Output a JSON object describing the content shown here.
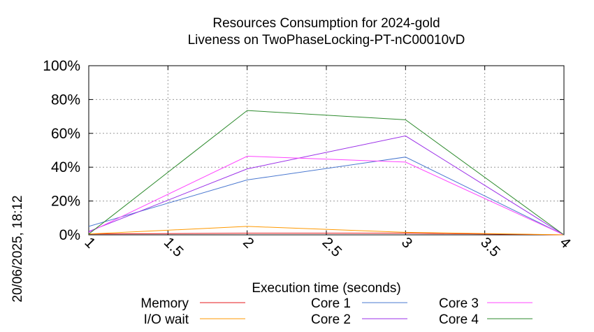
{
  "chart_data": {
    "type": "line",
    "title": "Resources Consumption for 2024-gold",
    "subtitle": "Liveness on TwoPhaseLocking-PT-nC00010vD",
    "xlabel": "Execution time (seconds)",
    "ylabel": "",
    "side_label": "20/06/2025, 18:12",
    "xlim": [
      1,
      4
    ],
    "ylim": [
      0,
      100
    ],
    "x_ticks": [
      1,
      1.5,
      2,
      2.5,
      3,
      3.5,
      4
    ],
    "x_tick_labels": [
      "1",
      "1.5",
      "2",
      "2.5",
      "3",
      "3.5",
      "4"
    ],
    "y_ticks": [
      0,
      20,
      40,
      60,
      80,
      100
    ],
    "y_tick_labels": [
      "0%",
      "20%",
      "40%",
      "60%",
      "80%",
      "100%"
    ],
    "grid": true,
    "legend_placement": "bottom",
    "x": [
      1,
      2,
      3,
      4
    ],
    "series": [
      {
        "name": "Memory",
        "color": "#e41a1c",
        "values": [
          0.5,
          1.0,
          1.0,
          0.0
        ]
      },
      {
        "name": "I/O wait",
        "color": "#ff9900",
        "values": [
          0.5,
          5.0,
          1.5,
          0.0
        ]
      },
      {
        "name": "Core 1",
        "color": "#4a78d0",
        "values": [
          5.0,
          32.5,
          46.0,
          0.0
        ]
      },
      {
        "name": "Core 2",
        "color": "#9b30e8",
        "values": [
          2.0,
          39.0,
          58.5,
          0.0
        ]
      },
      {
        "name": "Core 3",
        "color": "#ff44ff",
        "values": [
          1.5,
          46.5,
          43.0,
          0.0
        ]
      },
      {
        "name": "Core 4",
        "color": "#2e8b2e",
        "values": [
          0.5,
          73.5,
          68.0,
          0.0
        ]
      }
    ]
  }
}
